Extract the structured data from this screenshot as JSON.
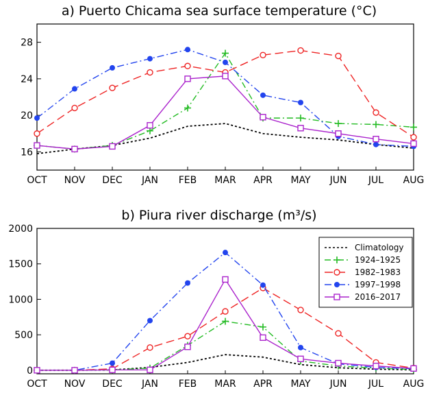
{
  "chart_data": [
    {
      "type": "line",
      "title": "a) Puerto Chicama sea surface temperature (°C)",
      "categories": [
        "OCT",
        "NOV",
        "DEC",
        "JAN",
        "FEB",
        "MAR",
        "APR",
        "MAY",
        "JUN",
        "JUL",
        "AUG"
      ],
      "ylim": [
        14,
        30
      ],
      "yticks": [
        16,
        20,
        24,
        28
      ],
      "series": [
        {
          "name": "Climatology",
          "color": "#000000",
          "dash": "3,3",
          "marker": "none",
          "values": [
            15.8,
            16.3,
            16.7,
            17.5,
            18.8,
            19.1,
            18.0,
            17.6,
            17.3,
            16.8,
            16.4
          ]
        },
        {
          "name": "1924-1925",
          "color": "#22bb22",
          "dash": "9,4,2,4",
          "marker": "plus",
          "values": [
            16.7,
            16.3,
            16.7,
            18.3,
            20.8,
            26.8,
            19.7,
            19.7,
            19.1,
            19.0,
            18.7
          ]
        },
        {
          "name": "1982-1983",
          "color": "#ee2222",
          "dash": "12,6",
          "marker": "circle",
          "values": [
            18.0,
            20.8,
            23.0,
            24.7,
            25.4,
            24.7,
            26.6,
            27.1,
            26.5,
            20.3,
            17.6
          ]
        },
        {
          "name": "1997-1998",
          "color": "#2244ee",
          "dash": "10,4,2,4",
          "marker": "dot",
          "values": [
            19.7,
            22.9,
            25.2,
            26.2,
            27.2,
            25.8,
            22.2,
            21.4,
            17.7,
            16.8,
            16.6
          ]
        },
        {
          "name": "2016-2017",
          "color": "#aa22cc",
          "dash": "",
          "marker": "square",
          "values": [
            16.7,
            16.3,
            16.6,
            18.9,
            24.0,
            24.3,
            19.8,
            18.6,
            18.0,
            17.4,
            16.9
          ]
        }
      ]
    },
    {
      "type": "line",
      "title": "b) Piura river discharge (m³/s)",
      "categories": [
        "OCT",
        "NOV",
        "DEC",
        "JAN",
        "FEB",
        "MAR",
        "APR",
        "MAY",
        "JUN",
        "JUL",
        "AUG"
      ],
      "ylim": [
        -50,
        2000
      ],
      "yticks": [
        0,
        500,
        1000,
        1500,
        2000
      ],
      "legend_position": "top-right",
      "series": [
        {
          "name": "Climatology",
          "color": "#000000",
          "dash": "3,3",
          "marker": "none",
          "values": [
            0,
            0,
            5,
            40,
            110,
            220,
            185,
            80,
            35,
            15,
            5
          ]
        },
        {
          "name": "1924-1925",
          "color": "#22bb22",
          "dash": "9,4,2,4",
          "marker": "plus",
          "values": [
            0,
            0,
            5,
            30,
            350,
            690,
            610,
            130,
            60,
            30,
            10
          ]
        },
        {
          "name": "1982-1983",
          "color": "#ee2222",
          "dash": "12,6",
          "marker": "circle",
          "values": [
            0,
            0,
            20,
            320,
            480,
            830,
            1160,
            850,
            520,
            110,
            30
          ]
        },
        {
          "name": "1997-1998",
          "color": "#2244ee",
          "dash": "10,4,2,4",
          "marker": "dot",
          "values": [
            0,
            0,
            100,
            700,
            1230,
            1660,
            1200,
            320,
            90,
            40,
            20
          ]
        },
        {
          "name": "2016-2017",
          "color": "#aa22cc",
          "dash": "",
          "marker": "square",
          "values": [
            0,
            0,
            5,
            5,
            330,
            1280,
            460,
            160,
            100,
            60,
            25
          ]
        }
      ],
      "legend": [
        "Climatology",
        "1924–1925",
        "1982–1983",
        "1997–1998",
        "2016–2017"
      ]
    }
  ]
}
